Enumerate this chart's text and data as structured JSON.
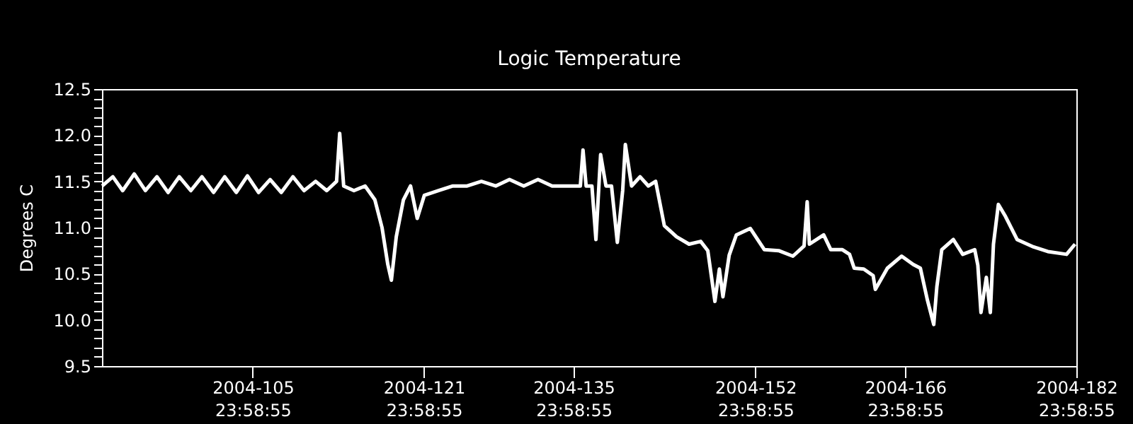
{
  "chart_data": {
    "type": "line",
    "title": "Logic Temperature",
    "ylabel": "Degrees C",
    "x": [
      "2004-03-31T22:00",
      "2004-04-01T22:00",
      "2004-04-02T20:00",
      "2004-04-03T22:00",
      "2004-04-04T23:00",
      "2004-04-06T01:00",
      "2004-04-07T02:00",
      "2004-04-08T03:00",
      "2004-04-09T05:00",
      "2004-04-10T06:00",
      "2004-04-11T08:00",
      "2004-04-12T09:00",
      "2004-04-13T11:00",
      "2004-04-14T12:00",
      "2004-04-15T13:00",
      "2004-04-16T15:00",
      "2004-04-17T16:00",
      "2004-04-18T18:00",
      "2004-04-19T19:00",
      "2004-04-20T21:00",
      "2004-04-21T22:00",
      "2004-04-22T20:00",
      "2004-04-23T03:00",
      "2004-04-23T12:00",
      "2004-04-24T11:00",
      "2004-04-25T12:00",
      "2004-04-26T10:00",
      "2004-04-27T02:00",
      "2004-04-27T15:00",
      "2004-04-27T23:00",
      "2004-04-28T10:00",
      "2004-04-29T02:00",
      "2004-04-29T18:00",
      "2004-04-30T09:00",
      "2004-05-01T01:00",
      "2004-05-02T09:00",
      "2004-05-03T17:00",
      "2004-05-05T01:00",
      "2004-05-06T09:00",
      "2004-05-07T17:00",
      "2004-05-09T00:00",
      "2004-05-10T08:00",
      "2004-05-11T16:00",
      "2004-05-12T23:45",
      "2004-05-14T07:00",
      "2004-05-15T15:00",
      "2004-05-15T21:00",
      "2004-05-16T04:00",
      "2004-05-16T17:00",
      "2004-05-17T02:00",
      "2004-05-17T12:30",
      "2004-05-18T00:30",
      "2004-05-18T13:00",
      "2004-05-19T02:00",
      "2004-05-19T14:00",
      "2004-05-19T20:00",
      "2004-05-20T10:00",
      "2004-05-21T05:00",
      "2004-05-21T23:45",
      "2004-05-22T16:00",
      "2004-05-23T11:30",
      "2004-05-24T15:00",
      "2004-05-25T19:00",
      "2004-05-26T21:00",
      "2004-05-27T13:00",
      "2004-05-28T05:00",
      "2004-05-28T15:00",
      "2004-05-28T23:00",
      "2004-05-29T13:00",
      "2004-05-30T05:00",
      "2004-05-31T12:30",
      "2004-06-01T20:00",
      "2004-06-03T04:00",
      "2004-06-04T12:00",
      "2004-06-05T13:00",
      "2004-06-05T20:00",
      "2004-06-06T01:00",
      "2004-06-07T09:00",
      "2004-06-08T01:00",
      "2004-06-09T03:00",
      "2004-06-09T19:00",
      "2004-06-10T05:30",
      "2004-06-11T03:00",
      "2004-06-12T00:00",
      "2004-06-12T05:00",
      "2004-06-13T08:00",
      "2004-06-14T16:00",
      "2004-06-15T18:00",
      "2004-06-16T10:00",
      "2004-06-17T02:00",
      "2004-06-17T16:00",
      "2004-06-17T23:00",
      "2004-06-18T10:00",
      "2004-06-19T12:00",
      "2004-06-20T09:00",
      "2004-06-21T12:00",
      "2004-06-21T19:00",
      "2004-06-22T02:00",
      "2004-06-22T14:00",
      "2004-06-22T23:00",
      "2004-06-23T06:00",
      "2004-06-23T17:00",
      "2004-06-24T09:00",
      "2004-06-25T11:00",
      "2004-06-27T00:00",
      "2004-06-28T08:00",
      "2004-06-30T02:00",
      "2004-06-30T21:00"
    ],
    "series": [
      {
        "color": "#ffffff",
        "values": [
          11.45,
          11.55,
          11.4,
          11.58,
          11.4,
          11.55,
          11.38,
          11.55,
          11.4,
          11.55,
          11.38,
          11.55,
          11.38,
          11.56,
          11.38,
          11.52,
          11.38,
          11.55,
          11.4,
          11.5,
          11.4,
          11.5,
          12.02,
          11.45,
          11.4,
          11.45,
          11.3,
          11.0,
          10.6,
          10.43,
          10.9,
          11.3,
          11.45,
          11.1,
          11.35,
          11.4,
          11.45,
          11.45,
          11.5,
          11.45,
          11.52,
          11.45,
          11.52,
          11.45,
          11.45,
          11.45,
          11.84,
          11.45,
          11.45,
          10.87,
          11.79,
          11.45,
          11.45,
          10.84,
          11.4,
          11.9,
          11.45,
          11.55,
          11.45,
          11.5,
          11.02,
          10.9,
          10.82,
          10.85,
          10.75,
          10.2,
          10.55,
          10.25,
          10.7,
          10.92,
          10.99,
          10.76,
          10.75,
          10.69,
          10.8,
          11.28,
          10.82,
          10.92,
          10.76,
          10.76,
          10.71,
          10.56,
          10.55,
          10.48,
          10.33,
          10.56,
          10.69,
          10.6,
          10.56,
          10.21,
          9.95,
          10.36,
          10.76,
          10.87,
          10.71,
          10.76,
          10.59,
          10.08,
          10.46,
          10.08,
          10.82,
          11.25,
          11.12,
          10.87,
          10.79,
          10.74,
          10.71,
          10.82
        ]
      }
    ],
    "xlim": [
      "2004-03-31T21:36",
      "2004-07-01T00:00"
    ],
    "xticks": [
      {
        "value": "2004-04-14T23:58:55",
        "label": "2004-105 23:58:55"
      },
      {
        "value": "2004-04-30T23:58:55",
        "label": "2004-121 23:58:55"
      },
      {
        "value": "2004-05-14T23:58:55",
        "label": "2004-135 23:58:55"
      },
      {
        "value": "2004-05-31T23:58:55",
        "label": "2004-152 23:58:55"
      },
      {
        "value": "2004-06-14T23:58:55",
        "label": "2004-166 23:58:55"
      },
      {
        "value": "2004-06-30T23:58:55",
        "label": "2004-182 23:58:55"
      }
    ],
    "ylim": [
      9.5,
      12.5
    ],
    "yticks": [
      9.5,
      {
        "value": 9.6,
        "label": null
      },
      {
        "value": 9.7,
        "label": null
      },
      {
        "value": 9.8,
        "label": null
      },
      {
        "value": 9.9,
        "label": null
      },
      {
        "value": 10,
        "label": "10.0"
      },
      {
        "value": 10.1,
        "label": null
      },
      {
        "value": 10.2,
        "label": null
      },
      {
        "value": 10.3,
        "label": null
      },
      {
        "value": 10.4,
        "label": null
      },
      10.5,
      {
        "value": 10.6,
        "label": null
      },
      {
        "value": 10.7,
        "label": null
      },
      {
        "value": 10.8,
        "label": null
      },
      {
        "value": 10.9,
        "label": null
      },
      {
        "value": 11,
        "label": "11.0"
      },
      {
        "value": 11.1,
        "label": null
      },
      {
        "value": 11.2,
        "label": null
      },
      {
        "value": 11.3,
        "label": null
      },
      {
        "value": 11.4,
        "label": null
      },
      11.5,
      {
        "value": 11.6,
        "label": null
      },
      {
        "value": 11.7,
        "label": null
      },
      {
        "value": 11.8,
        "label": null
      },
      {
        "value": 11.9,
        "label": null
      },
      {
        "value": 12,
        "label": "12.0"
      },
      {
        "value": 12.1,
        "label": null
      },
      {
        "value": 12.2,
        "label": null
      },
      {
        "value": 12.3,
        "label": null
      },
      {
        "value": 12.4,
        "label": null
      },
      12.5
    ],
    "grid": false,
    "marker": "none",
    "line_style": "solid"
  }
}
